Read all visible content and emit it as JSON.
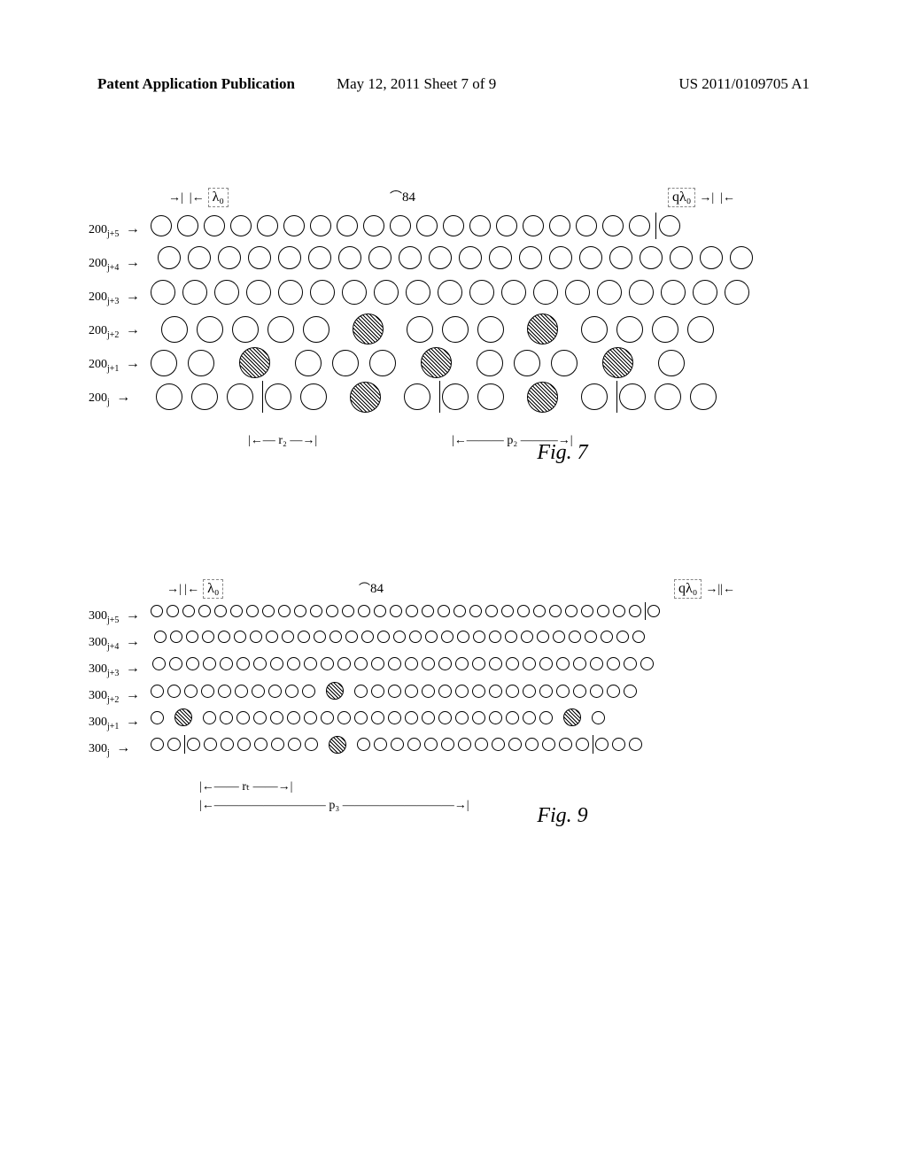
{
  "header": {
    "left": "Patent Application Publication",
    "mid": "May 12, 2011  Sheet 7 of 9",
    "right": "US 2011/0109705 A1"
  },
  "fig7": {
    "caption": "Fig. 7",
    "lambda0": "λ₀",
    "qlambda0": "qλ₀",
    "callout_84": "84",
    "r2": "r₂",
    "p2": "p₂",
    "rows": [
      {
        "label": "200",
        "sub": "j+5",
        "pattern": "NNNNNNNNNNNNNNNNNNN|TN",
        "scale": 24,
        "gap": 6
      },
      {
        "label": "200",
        "sub": "j+4",
        "pattern": "NNNNNNNNNNNNNNNNNNNN",
        "scale": 26,
        "gap": 8,
        "offset": 8
      },
      {
        "label": "200",
        "sub": "j+3",
        "pattern": "NNNNNNNNNNNNNNNNNNN",
        "scale": 28,
        "gap": 8
      },
      {
        "label": "200",
        "sub": "j+2",
        "pattern": "NNNNN H NNN H NNNN",
        "scale": 30,
        "gap": 10,
        "offset": 12
      },
      {
        "label": "200",
        "sub": "j+1",
        "pattern": "NN H NNN H NNN H N",
        "scale": 30,
        "gap": 12
      },
      {
        "label": "200",
        "sub": "j",
        "pattern": "NNN|NN H N|NN H N|NNN",
        "scale": 30,
        "gap": 10,
        "offset": 6
      }
    ]
  },
  "fig9": {
    "caption": "Fig. 9",
    "lambda0": "λ₀",
    "qlambda0": "qλ₀",
    "callout_84": "84",
    "rt": "rₜ",
    "p3": "p₃",
    "rows": [
      {
        "label": "300",
        "sub": "j+5",
        "pattern": "sssssssssssssssssssssssssssssss|s",
        "scale": 14
      },
      {
        "label": "300",
        "sub": "j+4",
        "pattern": "sssssssssssssssssssssssssssssss",
        "scale": 14,
        "offset": 4
      },
      {
        "label": "300",
        "sub": "j+3",
        "pattern": "ssssssssssssssssssssssssssssss",
        "scale": 15,
        "offset": 2
      },
      {
        "label": "300",
        "sub": "j+2",
        "pattern": "ssssssssss h sssssssssssssssss",
        "scale": 15
      },
      {
        "label": "300",
        "sub": "j+1",
        "pattern": "s h sssssssssssssssssssss h s",
        "scale": 15
      },
      {
        "label": "300",
        "sub": "j",
        "pattern": "ss|ssssssss h ssssssssssssss|sss",
        "scale": 15
      }
    ]
  },
  "colors": {
    "stroke": "#000000",
    "background": "#ffffff",
    "dashed": "#888888"
  }
}
